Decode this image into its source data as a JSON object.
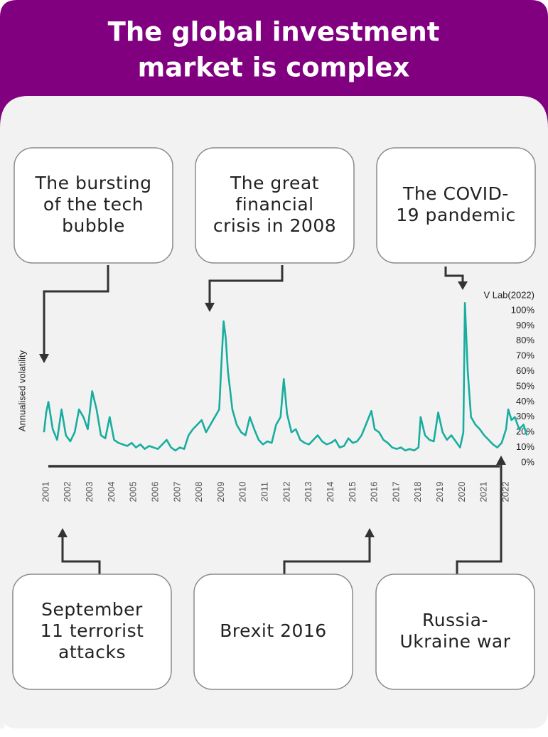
{
  "chart_data": {
    "type": "line",
    "title": [
      "The global investment",
      "market is complex"
    ],
    "source": "V Lab(2022)",
    "y_label": "Annualised volatility",
    "annotations": [
      [
        "The bursting",
        "of the tech",
        "bubble"
      ],
      [
        "The great",
        "financial",
        "crisis in 2008"
      ],
      [
        "The COVID-",
        "19 pandemic"
      ],
      [
        "September",
        "11 terrorist",
        "attacks"
      ],
      [
        "Brexit 2016"
      ],
      [
        "Russia-",
        "Ukraine war"
      ]
    ],
    "color": "#19ad9f",
    "xlim": [
      2000.85,
      2023.05
    ],
    "xticks": [
      2001,
      2002,
      2003,
      2004,
      2005,
      2006,
      2007,
      2008,
      2009,
      2010,
      2011,
      2012,
      2013,
      2014,
      2015,
      2016,
      2017,
      2018,
      2019,
      2020,
      2021,
      2022
    ],
    "ylim": [
      0,
      105
    ],
    "yticks": [
      {
        "value": 0,
        "label": "0%"
      },
      {
        "value": 10,
        "label": "10%"
      },
      {
        "value": 20,
        "label": "20%"
      },
      {
        "value": 30,
        "label": "30%"
      },
      {
        "value": 40,
        "label": "40%"
      },
      {
        "value": 50,
        "label": "50%"
      },
      {
        "value": 60,
        "label": "60%"
      },
      {
        "value": 70,
        "label": "70%"
      },
      {
        "value": 80,
        "label": "80%"
      },
      {
        "value": 90,
        "label": "90%"
      },
      {
        "value": 100,
        "label": "100%"
      }
    ],
    "x": [
      2000.9,
      2001.0,
      2001.1,
      2001.3,
      2001.5,
      2001.7,
      2001.9,
      2002.1,
      2002.3,
      2002.5,
      2002.7,
      2002.9,
      2003.1,
      2003.3,
      2003.5,
      2003.7,
      2003.9,
      2004.1,
      2004.3,
      2004.5,
      2004.7,
      2004.9,
      2005.1,
      2005.3,
      2005.5,
      2005.7,
      2005.9,
      2006.1,
      2006.3,
      2006.5,
      2006.7,
      2006.9,
      2007.1,
      2007.3,
      2007.5,
      2007.7,
      2007.9,
      2008.1,
      2008.3,
      2008.5,
      2008.7,
      2008.9,
      2009.0,
      2009.1,
      2009.2,
      2009.3,
      2009.5,
      2009.7,
      2009.9,
      2010.1,
      2010.3,
      2010.5,
      2010.7,
      2010.9,
      2011.1,
      2011.3,
      2011.5,
      2011.7,
      2011.85,
      2012.0,
      2012.2,
      2012.4,
      2012.6,
      2012.8,
      2013.0,
      2013.2,
      2013.4,
      2013.6,
      2013.8,
      2014.0,
      2014.2,
      2014.4,
      2014.6,
      2014.8,
      2015.0,
      2015.2,
      2015.4,
      2015.6,
      2015.85,
      2016.0,
      2016.2,
      2016.4,
      2016.6,
      2016.8,
      2017.0,
      2017.2,
      2017.4,
      2017.6,
      2017.8,
      2018.0,
      2018.1,
      2018.3,
      2018.5,
      2018.7,
      2018.9,
      2019.1,
      2019.3,
      2019.5,
      2019.7,
      2019.9,
      2020.05,
      2020.12,
      2020.25,
      2020.4,
      2020.6,
      2020.8,
      2021.0,
      2021.2,
      2021.4,
      2021.6,
      2021.8,
      2022.0,
      2022.1,
      2022.25,
      2022.4,
      2022.6,
      2022.8,
      2022.95
    ],
    "values": [
      20,
      33,
      40,
      22,
      15,
      35,
      18,
      14,
      20,
      35,
      30,
      22,
      47,
      35,
      18,
      16,
      30,
      15,
      13,
      12,
      11,
      13,
      10,
      12,
      9,
      11,
      10,
      9,
      12,
      15,
      10,
      8,
      10,
      9,
      18,
      22,
      25,
      28,
      20,
      25,
      30,
      35,
      65,
      93,
      82,
      60,
      35,
      25,
      20,
      18,
      30,
      22,
      15,
      12,
      14,
      13,
      25,
      30,
      55,
      32,
      20,
      22,
      15,
      13,
      12,
      15,
      18,
      14,
      12,
      13,
      15,
      10,
      11,
      16,
      13,
      14,
      18,
      25,
      34,
      22,
      20,
      15,
      13,
      10,
      9,
      10,
      8,
      9,
      8,
      10,
      30,
      18,
      15,
      14,
      33,
      20,
      15,
      18,
      14,
      10,
      20,
      105,
      60,
      30,
      25,
      22,
      18,
      15,
      12,
      10,
      13,
      22,
      35,
      28,
      30,
      22,
      25,
      18
    ]
  }
}
